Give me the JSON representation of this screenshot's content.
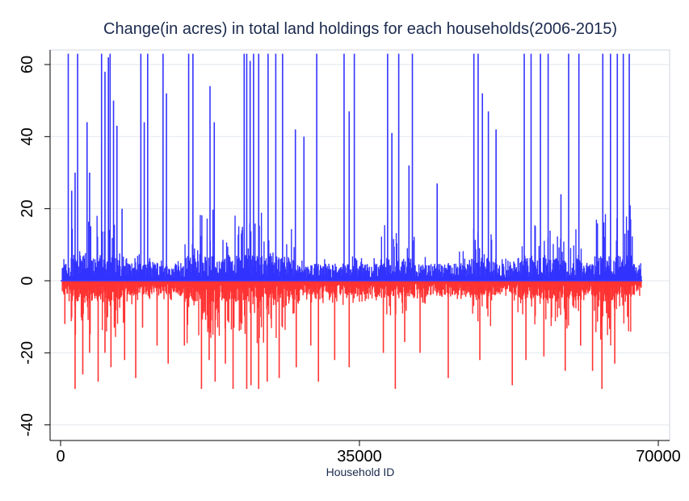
{
  "chart_data": {
    "type": "bar",
    "title": "Change(in acres) in total land holdings for each households(2006-2015)",
    "xlabel": "Household ID",
    "ylabel": "",
    "xlim": [
      0,
      70000
    ],
    "ylim": [
      -42,
      65
    ],
    "x_ticks": [
      0,
      35000,
      70000
    ],
    "x_tick_labels": [
      "0",
      "35000",
      "70000"
    ],
    "y_ticks": [
      -40,
      -20,
      0,
      20,
      40,
      60
    ],
    "y_tick_labels": [
      "-40",
      "-20",
      "0",
      "20",
      "40",
      "60"
    ],
    "grid": true,
    "series": [
      {
        "name": "",
        "color": "#3333ff",
        "x": [
          900,
          1300,
          1700,
          2000,
          3100,
          3400,
          4800,
          5200,
          5600,
          5800,
          6200,
          6600,
          7200,
          9400,
          9800,
          10200,
          12000,
          12400,
          15000,
          15500,
          17500,
          18000,
          21500,
          21800,
          22200,
          22600,
          23200,
          24300,
          25200,
          26000,
          27500,
          28500,
          30000,
          33200,
          33800,
          34400,
          38300,
          38800,
          39600,
          40800,
          41200,
          44100,
          48400,
          48900,
          49400,
          50100,
          51000,
          54300,
          55100,
          56200,
          57100,
          58600,
          59500,
          60700,
          63500,
          64400,
          65200,
          65900,
          66600
        ],
        "values": [
          63,
          25,
          30,
          63,
          44,
          30,
          63,
          58,
          62,
          63,
          50,
          43,
          20,
          63,
          44,
          63,
          63,
          52,
          63,
          63,
          54,
          44,
          63,
          63,
          61,
          63,
          63,
          63,
          63,
          63,
          42,
          40,
          63,
          63,
          47,
          63,
          63,
          41,
          63,
          32,
          63,
          27,
          63,
          63,
          52,
          47,
          42,
          63,
          63,
          63,
          63,
          24,
          63,
          63,
          63,
          63,
          63,
          63,
          63
        ]
      },
      {
        "name": "",
        "color": "#ff3333",
        "x": [
          500,
          1700,
          2600,
          3400,
          4400,
          5200,
          5900,
          6300,
          7500,
          8800,
          9600,
          11300,
          12600,
          14500,
          16500,
          17400,
          18100,
          19300,
          20200,
          21800,
          22300,
          23200,
          24200,
          25600,
          27600,
          29300,
          30200,
          32100,
          33800,
          37800,
          39200,
          40300,
          42100,
          45400,
          49100,
          52900,
          54500,
          56600,
          59100,
          60900,
          62300,
          63400,
          64900,
          66400
        ],
        "values": [
          -12,
          -30,
          -26,
          -20,
          -28,
          -20,
          -24,
          -13,
          -22,
          -27,
          -13,
          -18,
          -23,
          -18,
          -30,
          -22,
          -28,
          -23,
          -30,
          -30,
          -29,
          -30,
          -28,
          -27,
          -24,
          -18,
          -28,
          -22,
          -24,
          -20,
          -30,
          -17,
          -20,
          -27,
          -22,
          -29,
          -22,
          -21,
          -25,
          -18,
          -25,
          -30,
          -23,
          -10
        ]
      }
    ]
  }
}
